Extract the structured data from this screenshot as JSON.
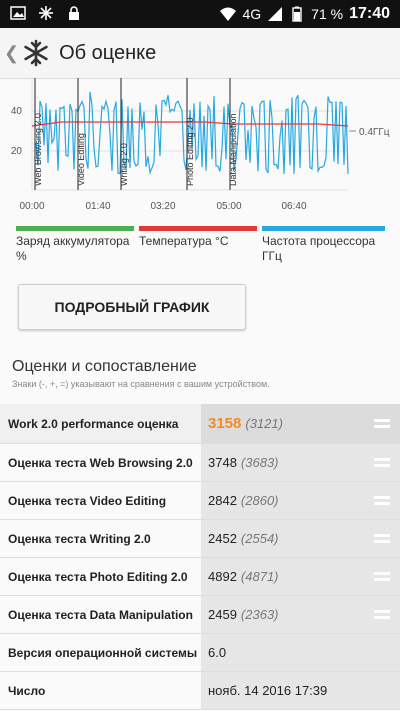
{
  "status_bar": {
    "network": "4G",
    "battery": "71 %",
    "time": "17:40",
    "icons": [
      "image-icon",
      "snowflake-icon",
      "lock-icon",
      "wifi-icon",
      "signal-icon",
      "battery-icon"
    ]
  },
  "app_bar": {
    "title": "Об оценке",
    "back_icon": "chevron-left-icon",
    "logo_icon": "snowflake-icon"
  },
  "chart_data": {
    "type": "line",
    "y_ticks": [
      "40",
      "20"
    ],
    "x_ticks": [
      "00:00",
      "01:40",
      "03:20",
      "05:00",
      "06:40"
    ],
    "annotation": "0.4ГГц",
    "segment_labels": [
      "Web Browsing 2.0",
      "Video Editing",
      "Writing 2.0",
      "Photo Editing 2.0",
      "Data Manipulation"
    ],
    "series": [
      {
        "name": "Заряд аккумулятора %",
        "color": "#4caf50"
      },
      {
        "name": "Температура °C",
        "color": "#e53935",
        "values": [
          32,
          34,
          34,
          34,
          34,
          34,
          34,
          33,
          33,
          33,
          33,
          32
        ]
      },
      {
        "name": "Частота процессора ГГц",
        "color": "#29a8e0"
      }
    ]
  },
  "legend": {
    "battery": "Заряд аккумулятора %",
    "temperature": "Температура °C",
    "cpu": "Частота процессора ГГц"
  },
  "detail_button": "ПОДРОБНЫЙ ГРАФИК",
  "scores_section": {
    "title": "Оценки и сопоставление",
    "note": "Знаки (-, +, =) указывают на сравнения с вашим устройством."
  },
  "rows": [
    {
      "label": "Work 2.0 performance оценка",
      "value": "3158",
      "compare": "(3121)",
      "sign": "="
    },
    {
      "label": "Оценка теста Web Browsing 2.0",
      "value": "3748",
      "compare": "(3683)",
      "sign": "="
    },
    {
      "label": "Оценка теста Video Editing",
      "value": "2842",
      "compare": "(2860)",
      "sign": "="
    },
    {
      "label": "Оценка теста Writing 2.0",
      "value": "2452",
      "compare": "(2554)",
      "sign": "="
    },
    {
      "label": "Оценка теста Photo Editing 2.0",
      "value": "4892",
      "compare": "(4871)",
      "sign": "="
    },
    {
      "label": "Оценка теста Data Manipulation",
      "value": "2459",
      "compare": "(2363)",
      "sign": "="
    },
    {
      "label": "Версия операционной системы",
      "value": "6.0"
    },
    {
      "label": "Число",
      "value": "нояб. 14 2016 17:39"
    }
  ],
  "colors": {
    "accent": "#f28c1f",
    "battery": "#4caf50",
    "temperature": "#e53935",
    "cpu": "#29a8e0"
  }
}
